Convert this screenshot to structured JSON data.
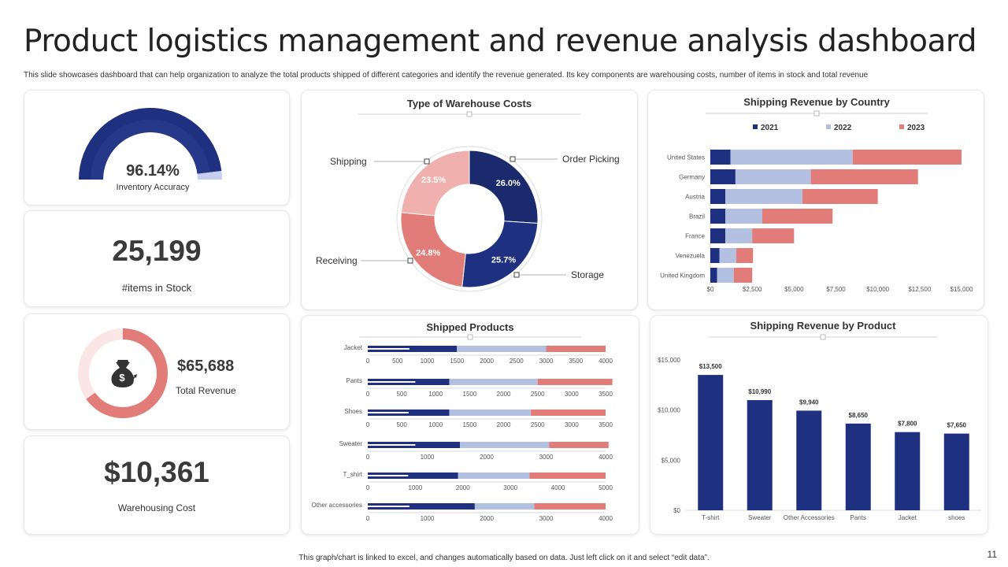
{
  "title": "Product logistics management and revenue analysis dashboard",
  "subtitle": "This slide showcases dashboard that can help organization to analyze the total products shipped of different categories and identify the revenue generated. Its key components are warehousing costs, number of items in stock and total revenue",
  "footer": "This graph/chart is linked to excel, and changes automatically based on data. Just left click on it and select “edit data”.",
  "page_number": "11",
  "colors": {
    "navy": "#1f3080",
    "navy_dark": "#1a2a6c",
    "lavender": "#b4c0e2",
    "salmon": "#e17c78",
    "pink_light": "#f0b1ae",
    "blush": "#fbe6e6",
    "gauge_light": "#c6cff0"
  },
  "kpis": {
    "inventory_accuracy": {
      "value": "96.14%",
      "label": "Inventory Accuracy",
      "fraction": 0.9614
    },
    "items_in_stock": {
      "value": "25,199",
      "label": "#items in Stock"
    },
    "total_revenue": {
      "value": "$65,688",
      "label": "Total Revenue",
      "icon": "money-bag-icon"
    },
    "warehousing_cost": {
      "value": "$10,361",
      "label": "Warehousing Cost"
    }
  },
  "chart_data": [
    {
      "id": "warehouse_costs",
      "type": "pie",
      "title": "Type of Warehouse Costs",
      "slices": [
        {
          "name": "Order Picking",
          "value": 26.0,
          "label": "26.0%"
        },
        {
          "name": "Storage",
          "value": 25.7,
          "label": "25.7%"
        },
        {
          "name": "Receiving",
          "value": 24.8,
          "label": "24.8%"
        },
        {
          "name": "Shipping",
          "value": 23.5,
          "label": "23.5%"
        }
      ]
    },
    {
      "id": "revenue_by_country",
      "type": "bar",
      "orientation": "horizontal",
      "stacked": true,
      "title": "Shipping Revenue by Country",
      "categories": [
        "United States",
        "Germany",
        "Austria",
        "Brazil",
        "France",
        "Venezuela",
        "United Kingdom"
      ],
      "series": [
        {
          "name": "2021",
          "values": [
            1200,
            1500,
            900,
            900,
            900,
            550,
            400
          ]
        },
        {
          "name": "2022",
          "values": [
            7300,
            4500,
            4600,
            2200,
            1600,
            1000,
            1000
          ]
        },
        {
          "name": "2023",
          "values": [
            6500,
            6400,
            4500,
            4200,
            2500,
            1000,
            1100
          ]
        }
      ],
      "xlim": [
        0,
        15000
      ],
      "xticks": [
        "$0",
        "$2,500",
        "$5,000",
        "$7,500",
        "$10,000",
        "$12,500",
        "$15,000"
      ]
    },
    {
      "id": "shipped_products",
      "type": "bar",
      "orientation": "horizontal",
      "stacked": true,
      "title": "Shipped Products",
      "rows": [
        {
          "name": "Jacket",
          "max": 4000,
          "ticks": [
            "0",
            "500",
            "1000",
            "1500",
            "2000",
            "2500",
            "3000",
            "3500",
            "4000"
          ],
          "values": [
            1500,
            1500,
            1000
          ],
          "inner": 700
        },
        {
          "name": "Pants",
          "max": 3500,
          "ticks": [
            "0",
            "500",
            "1000",
            "1500",
            "2000",
            "2500",
            "3000",
            "3500"
          ],
          "values": [
            1200,
            1300,
            1100
          ],
          "inner": 700
        },
        {
          "name": "Shoes",
          "max": 3500,
          "ticks": [
            "0",
            "500",
            "1000",
            "1500",
            "2000",
            "2500",
            "3000",
            "3500"
          ],
          "values": [
            1200,
            1200,
            1100
          ],
          "inner": 600
        },
        {
          "name": "Sweater",
          "max": 4000,
          "ticks": [
            "0",
            "1000",
            "2000",
            "3000",
            "4000"
          ],
          "values": [
            1550,
            1500,
            1000
          ],
          "inner": 800
        },
        {
          "name": "T_shirt",
          "max": 5000,
          "ticks": [
            "0",
            "1000",
            "2000",
            "3000",
            "4000",
            "5000"
          ],
          "values": [
            1900,
            1500,
            1600
          ],
          "inner": 850
        },
        {
          "name": "Other accessories",
          "max": 4000,
          "ticks": [
            "0",
            "1000",
            "2000",
            "3000",
            "4000"
          ],
          "values": [
            1800,
            1000,
            1200
          ],
          "inner": 700
        }
      ]
    },
    {
      "id": "revenue_by_product",
      "type": "bar",
      "title": "Shipping Revenue by Product",
      "categories": [
        "T-shirt",
        "Sweater",
        "Other Accessories",
        "Pants",
        "Jacket",
        "shoes"
      ],
      "values": [
        13500,
        10990,
        9940,
        8650,
        7800,
        7650
      ],
      "labels": [
        "$13,500",
        "$10,990",
        "$9,940",
        "$8,650",
        "$7,800",
        "$7,650"
      ],
      "ylim": [
        0,
        15000
      ],
      "yticks": [
        "$0",
        "$5,000",
        "$10,000",
        "$15,000"
      ]
    }
  ]
}
